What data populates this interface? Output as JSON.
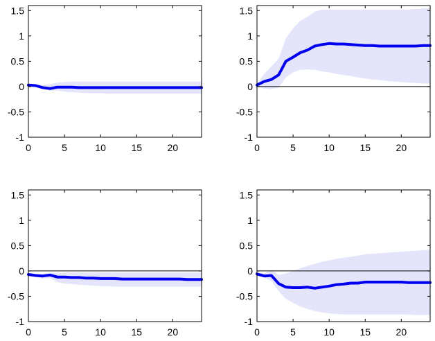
{
  "figure": {
    "accent_line": "#0000ee",
    "band_color": "#e4e4fb"
  },
  "chart_data": [
    {
      "type": "line",
      "xlim": [
        0,
        24
      ],
      "ylim": [
        -1,
        1.6
      ],
      "xticks": [
        0,
        5,
        10,
        15,
        20
      ],
      "yticks": [
        -1,
        -0.5,
        0,
        0.5,
        1,
        1.5
      ],
      "x": [
        0,
        1,
        2,
        3,
        4,
        5,
        6,
        7,
        8,
        9,
        10,
        11,
        12,
        13,
        14,
        15,
        16,
        17,
        18,
        19,
        20,
        21,
        22,
        23,
        24
      ],
      "series": [
        {
          "values": [
            0.03,
            0.02,
            -0.02,
            -0.04,
            -0.01,
            -0.01,
            -0.01,
            -0.02,
            -0.02,
            -0.02,
            -0.02,
            -0.02,
            -0.02,
            -0.02,
            -0.02,
            -0.02,
            -0.02,
            -0.02,
            -0.02,
            -0.02,
            -0.02,
            -0.02,
            -0.02,
            -0.02,
            -0.02
          ]
        }
      ],
      "band": {
        "upper": [
          0.05,
          0.04,
          0.03,
          0.05,
          0.08,
          0.09,
          0.1,
          0.1,
          0.1,
          0.1,
          0.1,
          0.1,
          0.1,
          0.1,
          0.1,
          0.1,
          0.1,
          0.1,
          0.1,
          0.1,
          0.1,
          0.1,
          0.1,
          0.1,
          0.1
        ],
        "lower": [
          0.01,
          -0.01,
          -0.05,
          -0.08,
          -0.08,
          -0.1,
          -0.11,
          -0.12,
          -0.13,
          -0.13,
          -0.13,
          -0.14,
          -0.14,
          -0.14,
          -0.14,
          -0.14,
          -0.14,
          -0.14,
          -0.14,
          -0.14,
          -0.14,
          -0.14,
          -0.14,
          -0.14,
          -0.14
        ]
      },
      "zero_line": false
    },
    {
      "type": "line",
      "xlim": [
        0,
        24
      ],
      "ylim": [
        -1,
        1.6
      ],
      "xticks": [
        0,
        5,
        10,
        15,
        20
      ],
      "yticks": [
        -1,
        -0.5,
        0,
        0.5,
        1,
        1.5
      ],
      "x": [
        0,
        1,
        2,
        3,
        4,
        5,
        6,
        7,
        8,
        9,
        10,
        11,
        12,
        13,
        14,
        15,
        16,
        17,
        18,
        19,
        20,
        21,
        22,
        23,
        24
      ],
      "series": [
        {
          "values": [
            0.03,
            0.1,
            0.14,
            0.23,
            0.5,
            0.58,
            0.67,
            0.72,
            0.8,
            0.83,
            0.85,
            0.84,
            0.84,
            0.83,
            0.82,
            0.81,
            0.81,
            0.8,
            0.8,
            0.8,
            0.8,
            0.8,
            0.8,
            0.81,
            0.81
          ]
        }
      ],
      "band": {
        "upper": [
          0.05,
          0.25,
          0.4,
          0.55,
          0.95,
          1.15,
          1.3,
          1.38,
          1.48,
          1.52,
          1.52,
          1.52,
          1.52,
          1.52,
          1.52,
          1.52,
          1.52,
          1.52,
          1.52,
          1.52,
          1.52,
          1.52,
          1.53,
          1.54,
          1.55
        ],
        "lower": [
          0.0,
          -0.04,
          -0.05,
          -0.02,
          0.18,
          0.28,
          0.33,
          0.34,
          0.33,
          0.3,
          0.28,
          0.25,
          0.23,
          0.21,
          0.18,
          0.16,
          0.14,
          0.13,
          0.11,
          0.1,
          0.09,
          0.08,
          0.07,
          0.06,
          0.06
        ]
      },
      "zero_line": true
    },
    {
      "type": "line",
      "xlim": [
        0,
        24
      ],
      "ylim": [
        -1,
        1.6
      ],
      "xticks": [
        0,
        5,
        10,
        15,
        20
      ],
      "yticks": [
        -1,
        -0.5,
        0,
        0.5,
        1,
        1.5
      ],
      "x": [
        0,
        1,
        2,
        3,
        4,
        5,
        6,
        7,
        8,
        9,
        10,
        11,
        12,
        13,
        14,
        15,
        16,
        17,
        18,
        19,
        20,
        21,
        22,
        23,
        24
      ],
      "series": [
        {
          "values": [
            -0.07,
            -0.09,
            -0.1,
            -0.08,
            -0.12,
            -0.12,
            -0.13,
            -0.13,
            -0.14,
            -0.14,
            -0.15,
            -0.15,
            -0.15,
            -0.16,
            -0.16,
            -0.16,
            -0.16,
            -0.16,
            -0.16,
            -0.16,
            -0.16,
            -0.16,
            -0.17,
            -0.17,
            -0.17
          ]
        }
      ],
      "band": {
        "upper": [
          -0.05,
          -0.06,
          -0.06,
          -0.04,
          -0.04,
          -0.03,
          -0.03,
          -0.03,
          -0.03,
          -0.03,
          -0.03,
          -0.03,
          -0.03,
          -0.03,
          -0.03,
          -0.03,
          -0.03,
          -0.03,
          -0.03,
          -0.03,
          -0.03,
          -0.03,
          -0.03,
          -0.03,
          -0.03
        ],
        "lower": [
          -0.09,
          -0.12,
          -0.15,
          -0.14,
          -0.22,
          -0.25,
          -0.26,
          -0.27,
          -0.28,
          -0.29,
          -0.3,
          -0.3,
          -0.31,
          -0.31,
          -0.31,
          -0.31,
          -0.31,
          -0.31,
          -0.31,
          -0.31,
          -0.31,
          -0.31,
          -0.31,
          -0.31,
          -0.31
        ]
      },
      "zero_line": true
    },
    {
      "type": "line",
      "xlim": [
        0,
        24
      ],
      "ylim": [
        -1,
        1.6
      ],
      "xticks": [
        0,
        5,
        10,
        15,
        20
      ],
      "yticks": [
        -1,
        -0.5,
        0,
        0.5,
        1,
        1.5
      ],
      "x": [
        0,
        1,
        2,
        3,
        4,
        5,
        6,
        7,
        8,
        9,
        10,
        11,
        12,
        13,
        14,
        15,
        16,
        17,
        18,
        19,
        20,
        21,
        22,
        23,
        24
      ],
      "series": [
        {
          "values": [
            -0.06,
            -0.1,
            -0.09,
            -0.25,
            -0.32,
            -0.33,
            -0.33,
            -0.32,
            -0.34,
            -0.32,
            -0.3,
            -0.27,
            -0.26,
            -0.24,
            -0.24,
            -0.22,
            -0.22,
            -0.22,
            -0.22,
            -0.22,
            -0.22,
            -0.23,
            -0.23,
            -0.23,
            -0.23
          ]
        }
      ],
      "band": {
        "upper": [
          -0.04,
          -0.05,
          0.02,
          -0.08,
          -0.05,
          0.0,
          0.05,
          0.1,
          0.14,
          0.18,
          0.21,
          0.24,
          0.26,
          0.28,
          0.3,
          0.33,
          0.34,
          0.35,
          0.36,
          0.37,
          0.38,
          0.39,
          0.4,
          0.41,
          0.42
        ],
        "lower": [
          -0.08,
          -0.13,
          -0.2,
          -0.4,
          -0.55,
          -0.63,
          -0.7,
          -0.75,
          -0.79,
          -0.82,
          -0.84,
          -0.85,
          -0.86,
          -0.86,
          -0.86,
          -0.86,
          -0.86,
          -0.86,
          -0.86,
          -0.86,
          -0.86,
          -0.86,
          -0.87,
          -0.87,
          -0.87
        ]
      },
      "zero_line": true
    }
  ]
}
